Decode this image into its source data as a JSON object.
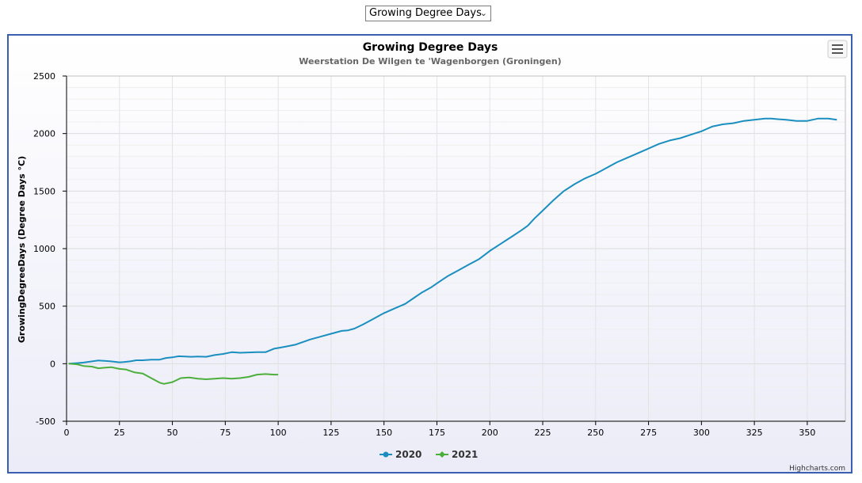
{
  "selector": {
    "value": "Growing Degree Days"
  },
  "credits": "Highcharts.com",
  "colors": {
    "series_2020": "#1a8fbf",
    "series_2021": "#4caf3c",
    "panel_border": "#3a5fb0"
  },
  "icons": {
    "menu": "hamburger-menu-icon"
  },
  "chart_data": {
    "type": "line",
    "title": "Growing Degree Days",
    "subtitle": "Weerstation De Wilgen te 'Wagenborgen (Groningen)",
    "xlabel": "",
    "ylabel": "GrowingDegreeDays (Degree Days °C)",
    "xlim": [
      0,
      368
    ],
    "ylim": [
      -500,
      2500
    ],
    "xticks": [
      0,
      25,
      50,
      75,
      100,
      125,
      150,
      175,
      200,
      225,
      250,
      275,
      300,
      325,
      350
    ],
    "yticks": [
      -500,
      0,
      500,
      1000,
      1500,
      2000,
      2500
    ],
    "grid": true,
    "legend": "bottom-center",
    "series": [
      {
        "name": "2020",
        "x": [
          1,
          5,
          8,
          12,
          15,
          18,
          21,
          25,
          27,
          30,
          33,
          36,
          40,
          44,
          47,
          50,
          53,
          56,
          59,
          62,
          66,
          70,
          74,
          78,
          82,
          86,
          90,
          94,
          98,
          101,
          104,
          108,
          112,
          115,
          120,
          125,
          130,
          133,
          136,
          140,
          144,
          150,
          155,
          160,
          164,
          168,
          172,
          176,
          180,
          185,
          190,
          195,
          200,
          205,
          210,
          215,
          218,
          221,
          225,
          230,
          235,
          240,
          245,
          250,
          255,
          260,
          265,
          270,
          275,
          280,
          285,
          290,
          295,
          300,
          305,
          310,
          315,
          320,
          325,
          330,
          333,
          336,
          340,
          345,
          350,
          355,
          360,
          364
        ],
        "y": [
          0,
          5,
          10,
          20,
          28,
          25,
          20,
          12,
          14,
          20,
          30,
          30,
          35,
          35,
          50,
          55,
          65,
          62,
          60,
          62,
          60,
          75,
          85,
          100,
          95,
          98,
          100,
          100,
          130,
          140,
          150,
          165,
          190,
          210,
          235,
          260,
          285,
          290,
          305,
          340,
          380,
          440,
          480,
          520,
          570,
          620,
          660,
          710,
          760,
          810,
          860,
          910,
          980,
          1040,
          1100,
          1160,
          1200,
          1260,
          1330,
          1420,
          1500,
          1560,
          1610,
          1650,
          1700,
          1750,
          1790,
          1830,
          1870,
          1910,
          1940,
          1960,
          1990,
          2020,
          2060,
          2080,
          2090,
          2110,
          2120,
          2130,
          2130,
          2125,
          2120,
          2110,
          2110,
          2130,
          2130,
          2120
        ]
      },
      {
        "name": "2021",
        "x": [
          1,
          5,
          8,
          12,
          15,
          18,
          21,
          25,
          28,
          32,
          36,
          40,
          44,
          46,
          50,
          54,
          58,
          62,
          66,
          70,
          74,
          78,
          82,
          86,
          90,
          94,
          98,
          100
        ],
        "y": [
          0,
          -5,
          -20,
          -25,
          -40,
          -35,
          -30,
          -45,
          -50,
          -75,
          -85,
          -125,
          -165,
          -175,
          -160,
          -125,
          -120,
          -130,
          -135,
          -130,
          -125,
          -130,
          -125,
          -115,
          -95,
          -90,
          -95,
          -95
        ]
      }
    ]
  }
}
